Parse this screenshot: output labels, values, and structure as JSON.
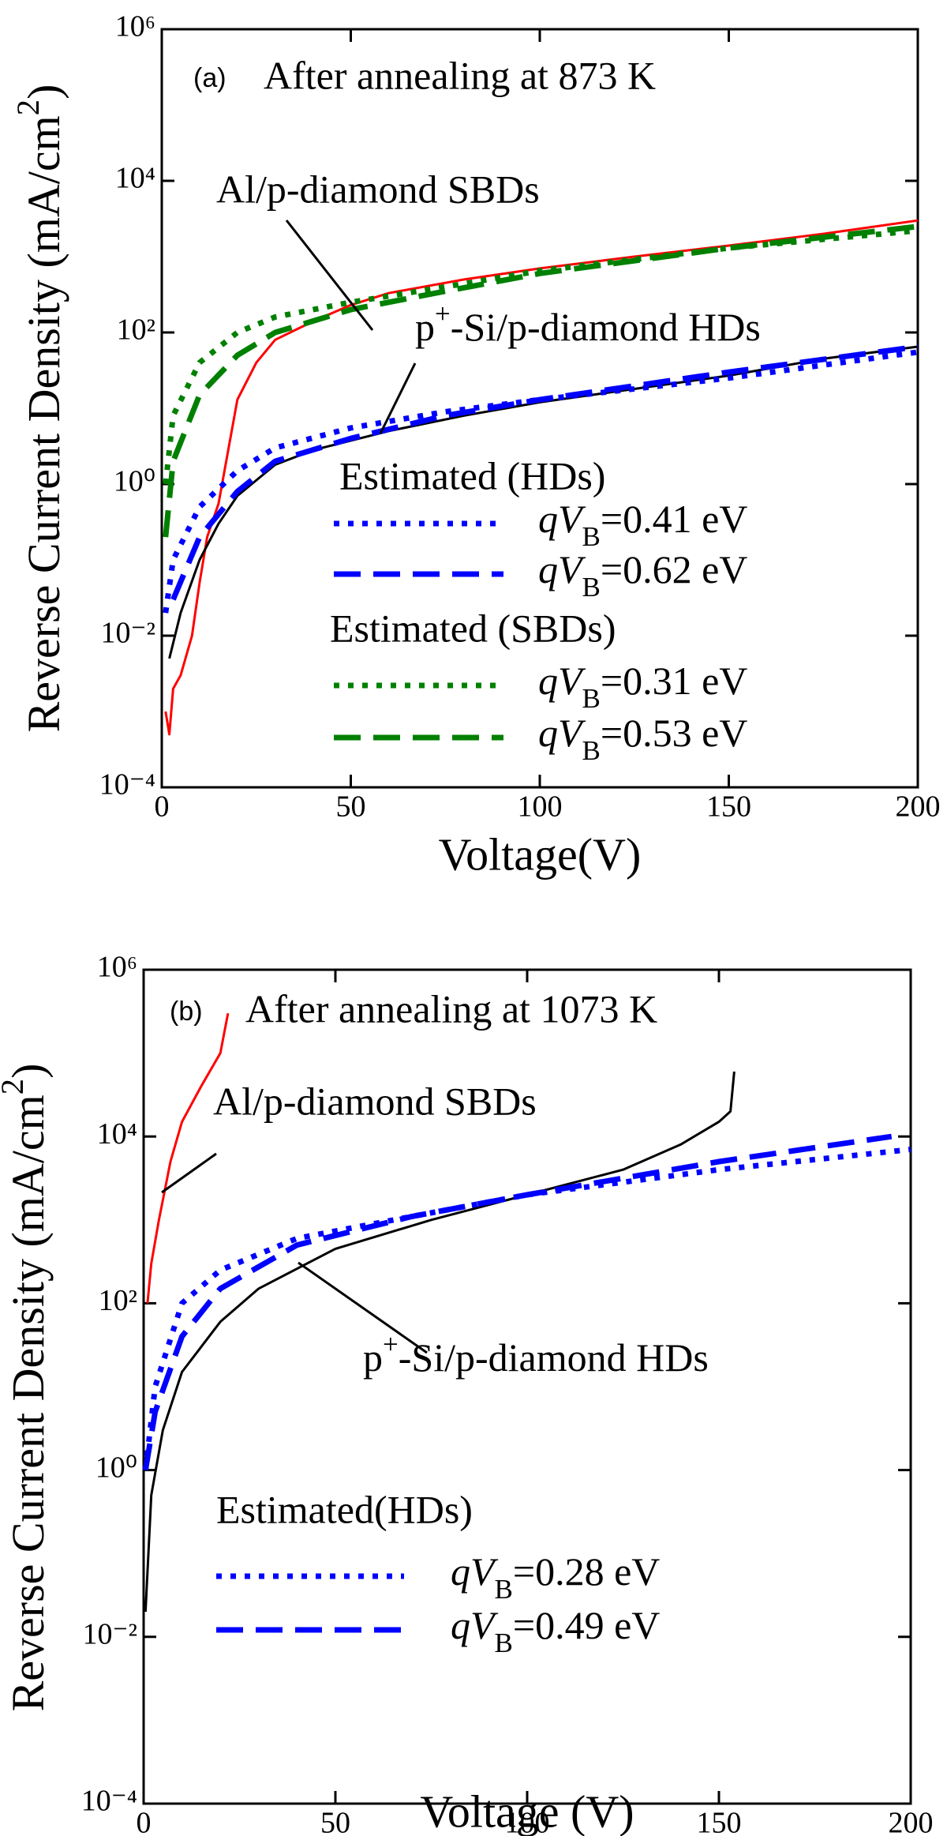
{
  "chart_data": [
    {
      "type": "line",
      "log_y": true,
      "xlabel": "Voltage(V)",
      "ylabel": "Reverse Current Density (mA/cm2)",
      "xlim": [
        0,
        200
      ],
      "xticks": [
        0,
        50,
        100,
        150,
        200
      ],
      "ylim": [
        0.0001,
        1000000
      ],
      "yticks": [
        {
          "value": 0.0001,
          "label": "10⁻⁴"
        },
        {
          "value": 0.01,
          "label": "10⁻²"
        },
        {
          "value": 1,
          "label": "10⁰"
        },
        {
          "value": 100,
          "label": "10²"
        },
        {
          "value": 10000,
          "label": "10⁴"
        },
        {
          "value": 1000000,
          "label": "10⁶"
        }
      ],
      "annotations": [
        "(a)",
        "After annealing at 873 K",
        "Al/p-diamond SBDs",
        "p+-Si/p-diamond HDs",
        "Estimated (HDs)",
        "Estimated (SBDs)"
      ],
      "series": [
        {
          "color": "#ff0000",
          "style": "solid",
          "x": [
            1,
            2,
            3,
            5,
            8,
            10,
            12,
            15,
            20,
            25,
            30,
            40,
            50,
            60,
            80,
            100,
            125,
            150,
            175,
            200
          ],
          "values": [
            0.001,
            0.0005,
            0.002,
            0.003,
            0.01,
            0.05,
            0.2,
            0.55,
            13,
            40,
            80,
            140,
            230,
            330,
            500,
            700,
            1000,
            1400,
            2000,
            3000
          ]
        },
        {
          "color": "#000000",
          "style": "solid",
          "x": [
            2,
            5,
            10,
            15,
            20,
            30,
            40,
            60,
            80,
            100,
            125,
            150,
            175,
            200
          ],
          "values": [
            0.005,
            0.02,
            0.1,
            0.3,
            0.7,
            1.8,
            2.8,
            5,
            8,
            12,
            18,
            27,
            45,
            65
          ]
        },
        {
          "name": "qVB=0.41 eV",
          "color": "#0000ff",
          "style": "dotted",
          "x": [
            1,
            3,
            10,
            20,
            30,
            50,
            75,
            100,
            150,
            200
          ],
          "values": [
            0.02,
            0.1,
            0.5,
            1.5,
            3,
            5.5,
            9,
            13,
            25,
            55
          ]
        },
        {
          "name": "qVB=0.62 eV",
          "color": "#0000ff",
          "style": "dashed",
          "x": [
            3,
            10,
            20,
            30,
            50,
            75,
            100,
            150,
            200
          ],
          "values": [
            0.03,
            0.2,
            0.8,
            2,
            4,
            8,
            13,
            30,
            65
          ]
        },
        {
          "name": "qVB=0.31 eV",
          "color": "#008000",
          "style": "dotted",
          "x": [
            1,
            3,
            10,
            20,
            30,
            50,
            75,
            100,
            150,
            200
          ],
          "values": [
            1,
            8,
            40,
            100,
            160,
            250,
            400,
            650,
            1300,
            2200
          ]
        },
        {
          "name": "qVB=0.53 eV",
          "color": "#008000",
          "style": "dashed",
          "x": [
            1,
            3,
            10,
            20,
            30,
            50,
            75,
            100,
            150,
            200
          ],
          "values": [
            0.2,
            2,
            15,
            50,
            100,
            200,
            350,
            600,
            1300,
            2500
          ]
        }
      ]
    },
    {
      "type": "line",
      "log_y": true,
      "xlabel": "Voltage (V)",
      "ylabel": "Reverse Current Density (mA/cm2)",
      "xlim": [
        0,
        200
      ],
      "xticks": [
        0,
        50,
        100,
        150,
        200
      ],
      "ylim": [
        0.0001,
        1000000
      ],
      "yticks": [
        {
          "value": 0.0001,
          "label": "10⁻⁴"
        },
        {
          "value": 0.01,
          "label": "10⁻²"
        },
        {
          "value": 1,
          "label": "10⁰"
        },
        {
          "value": 100,
          "label": "10²"
        },
        {
          "value": 10000,
          "label": "10⁴"
        },
        {
          "value": 1000000,
          "label": "10⁶"
        }
      ],
      "annotations": [
        "(b)",
        "After annealing at 1073 K",
        "Al/p-diamond SBDs",
        "p+-Si/p-diamond HDs",
        "Estimated(HDs)"
      ],
      "series": [
        {
          "color": "#ff0000",
          "style": "solid",
          "x": [
            1,
            2,
            4,
            7,
            10,
            15,
            20,
            22
          ],
          "values": [
            100,
            300,
            1000,
            5000,
            15000,
            40000,
            100000,
            300000
          ]
        },
        {
          "color": "#000000",
          "style": "solid",
          "x": [
            0.5,
            2,
            5,
            10,
            20,
            30,
            50,
            75,
            100,
            125,
            140,
            150,
            153,
            154
          ],
          "values": [
            0.02,
            0.5,
            3,
            15,
            60,
            150,
            450,
            1000,
            2000,
            4000,
            8000,
            15000,
            20000,
            60000
          ]
        },
        {
          "name": "qVB=0.28 eV",
          "color": "#0000ff",
          "style": "dotted",
          "x": [
            0.5,
            3,
            10,
            20,
            40,
            70,
            100,
            150,
            200
          ],
          "values": [
            1,
            10,
            100,
            250,
            600,
            1100,
            2000,
            4000,
            7000
          ]
        },
        {
          "name": "qVB=0.49 eV",
          "color": "#0000ff",
          "style": "dashed",
          "x": [
            0.5,
            3,
            10,
            20,
            40,
            70,
            100,
            150,
            195
          ],
          "values": [
            1,
            5,
            40,
            150,
            500,
            1100,
            2000,
            5000,
            10000
          ]
        }
      ]
    }
  ]
}
